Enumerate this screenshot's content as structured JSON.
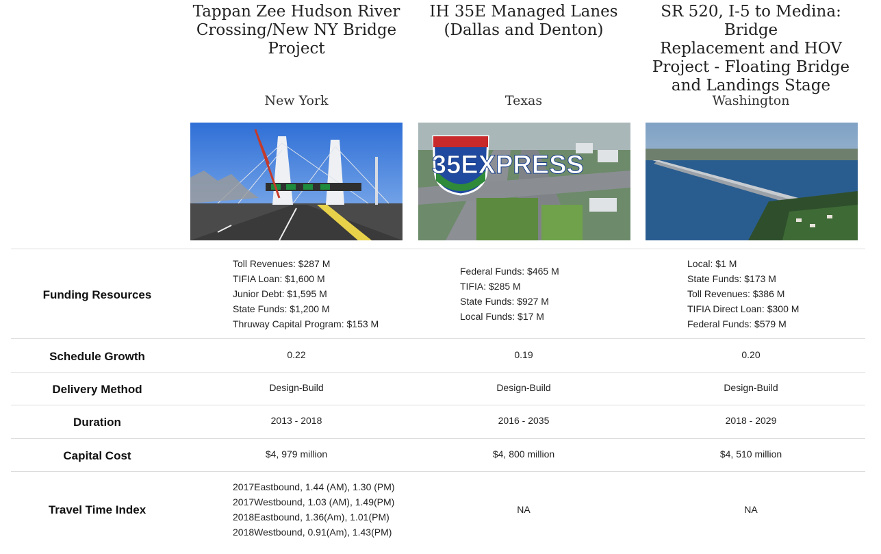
{
  "projects": [
    {
      "title_lines": [
        "Tappan Zee Hudson River",
        "Crossing/New NY Bridge",
        "Project"
      ],
      "state": "New York",
      "image": "bridge-photo"
    },
    {
      "title_lines": [
        "IH 35E Managed Lanes",
        "(Dallas and Denton)"
      ],
      "state": "Texas",
      "image": "highway-photo",
      "logo_text": "35EXPRESS"
    },
    {
      "title_lines": [
        "SR 520, I-5 to Medina: Bridge",
        "Replacement and HOV",
        "Project - Floating Bridge",
        "and Landings Stage"
      ],
      "state": "Washington",
      "image": "floating-bridge-photo"
    }
  ],
  "rows": {
    "funding": {
      "label": "Funding Resources",
      "values": [
        [
          "Toll Revenues: $287 M",
          "TIFIA Loan: $1,600 M",
          "Junior Debt: $1,595 M",
          "State Funds: $1,200 M",
          "Thruway Capital Program: $153 M"
        ],
        [
          "Federal Funds: $465 M",
          "TIFIA: $285 M",
          "State Funds: $927 M",
          "Local Funds: $17 M"
        ],
        [
          "Local: $1 M",
          "State Funds: $173 M",
          "Toll Revenues: $386 M",
          "TIFIA Direct Loan: $300 M",
          "Federal Funds: $579 M"
        ]
      ]
    },
    "schedule": {
      "label": "Schedule Growth",
      "values": [
        "0.22",
        "0.19",
        "0.20"
      ]
    },
    "delivery": {
      "label": "Delivery Method",
      "values": [
        "Design-Build",
        "Design-Build",
        "Design-Build"
      ]
    },
    "duration": {
      "label": "Duration",
      "values": [
        "2013 - 2018",
        "2016 - 2035",
        "2018 - 2029"
      ]
    },
    "cost": {
      "label": "Capital Cost",
      "values": [
        "$4, 979 million",
        "$4, 800 million",
        "$4, 510 million"
      ]
    },
    "travel": {
      "label": "Travel Time Index",
      "values": [
        [
          "2017Eastbound, 1.44 (AM), 1.30 (PM)",
          "2017Westbound, 1.03 (AM), 1.49(PM)",
          "2018Eastbound, 1.36(Am), 1.01(PM)",
          "2018Westbound, 0.91(Am), 1.43(PM)"
        ],
        "NA",
        "NA"
      ]
    }
  }
}
